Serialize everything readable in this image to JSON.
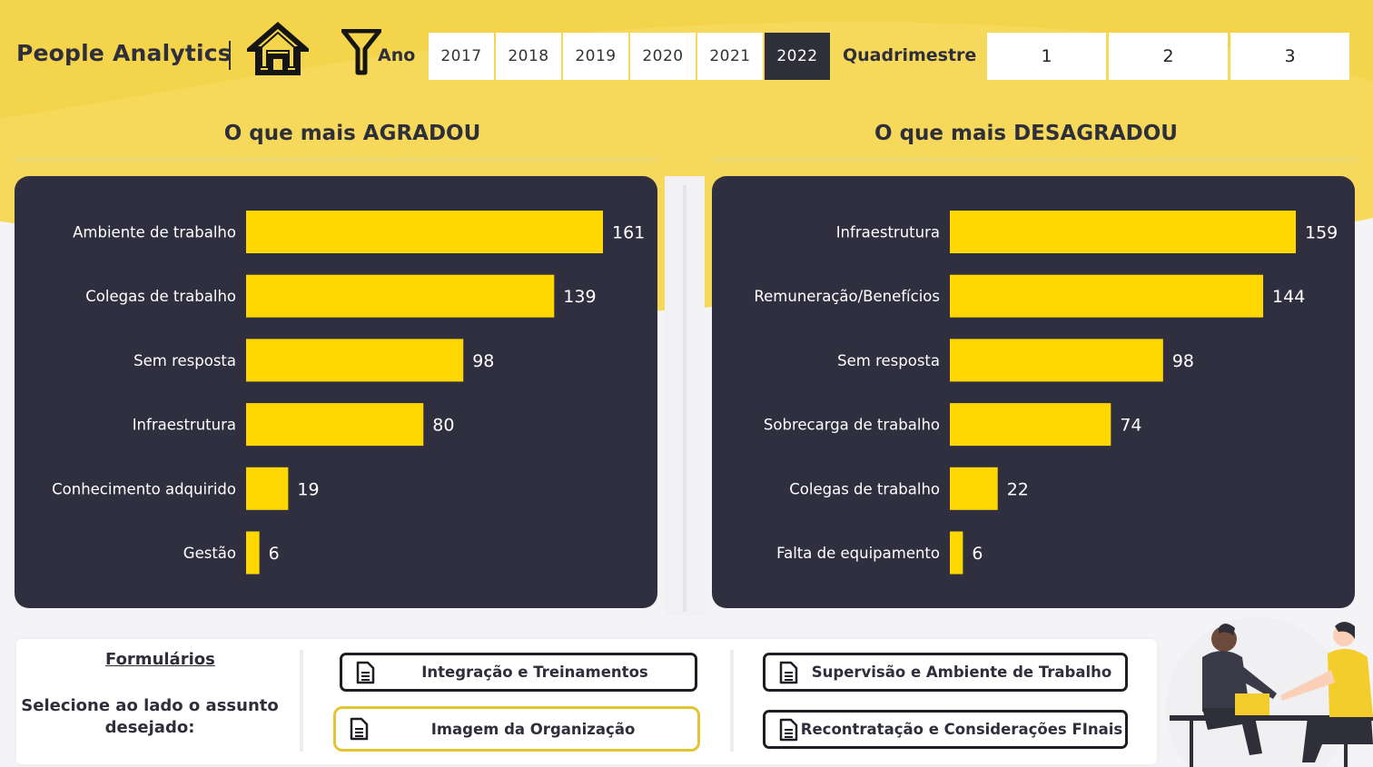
{
  "header": {
    "brand": "People Analytics",
    "filter_label": "Ano",
    "years": [
      "2017",
      "2018",
      "2019",
      "2020",
      "2021",
      "2022"
    ],
    "selected_year": "2022",
    "quad_label": "Quadrimestre",
    "quads": [
      "1",
      "2",
      "3"
    ]
  },
  "sections": {
    "left_title": "O que mais AGRADOU",
    "right_title": "O que mais DESAGRADOU"
  },
  "chart_data": [
    {
      "type": "bar",
      "orientation": "horizontal",
      "categories": [
        "Ambiente de trabalho",
        "Colegas de trabalho",
        "Sem resposta",
        "Infraestrutura",
        "Conhecimento adquirido",
        "Gestão"
      ],
      "values": [
        161,
        139,
        98,
        80,
        19,
        6
      ],
      "bar_color": "#FFD700",
      "data_labels": true,
      "grid": false,
      "legend": "none"
    },
    {
      "type": "bar",
      "orientation": "horizontal",
      "categories": [
        "Infraestrutura",
        "Remuneração/Benefícios",
        "Sem resposta",
        "Sobrecarga de trabalho",
        "Colegas de trabalho",
        "Falta de equipamento"
      ],
      "values": [
        159,
        144,
        98,
        74,
        22,
        6
      ],
      "bar_color": "#FFD700",
      "data_labels": true,
      "grid": false,
      "legend": "none"
    }
  ],
  "forms": {
    "title": "Formulários",
    "description": "Selecione ao lado o assunto desejado:",
    "buttons": [
      "Integração e Treinamentos",
      "Imagem da Organização",
      "Supervisão e Ambiente de Trabalho",
      "Recontratação e Considerações FInais"
    ],
    "active_button": "Imagem da Organização"
  },
  "colors": {
    "accent": "#FFD700",
    "header_bg": "#F6D95A",
    "panel_bg": "#2F2F40",
    "text_dark": "#2F2F3C"
  }
}
